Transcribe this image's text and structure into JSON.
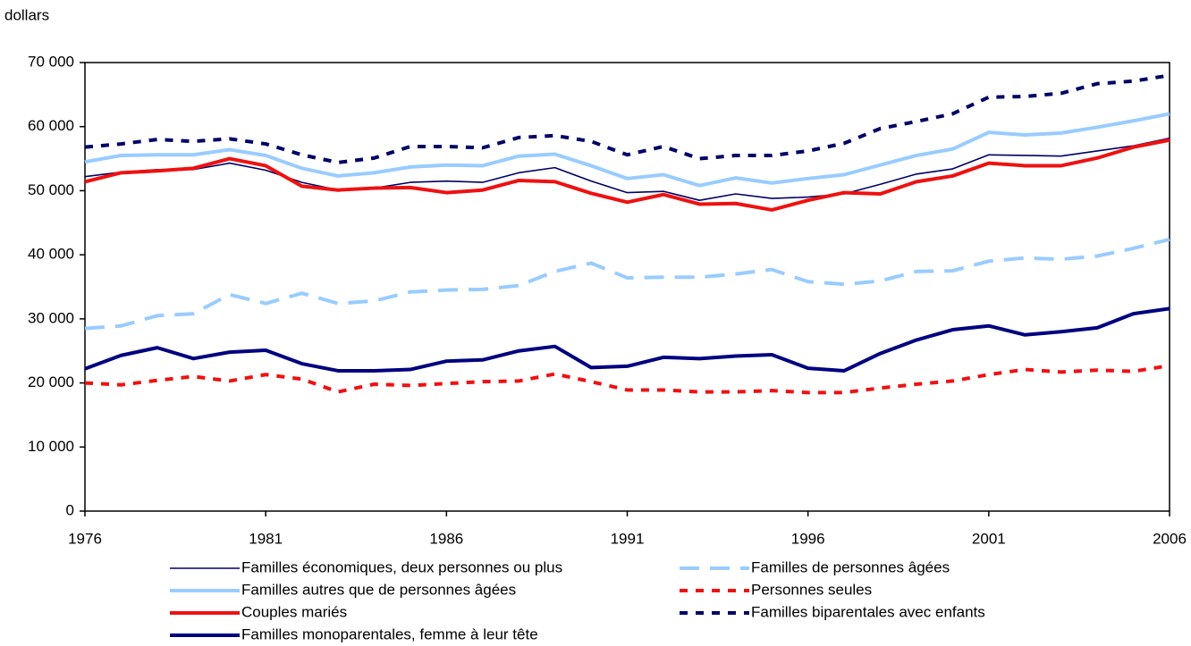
{
  "chart_data": {
    "type": "line",
    "y_label": "dollars",
    "x": [
      1976,
      1977,
      1978,
      1979,
      1980,
      1981,
      1982,
      1983,
      1984,
      1985,
      1986,
      1987,
      1988,
      1989,
      1990,
      1991,
      1992,
      1993,
      1994,
      1995,
      1996,
      1997,
      1998,
      1999,
      2000,
      2001,
      2002,
      2003,
      2004,
      2005,
      2006
    ],
    "xlim": [
      1976,
      2006
    ],
    "xticks": [
      1976,
      1981,
      1986,
      1991,
      1996,
      2001,
      2006
    ],
    "ylim": [
      0,
      70000
    ],
    "yticks": [
      0,
      {
        "value": 10000,
        "label": "10 000"
      },
      {
        "value": 20000,
        "label": "20 000"
      },
      {
        "value": 30000,
        "label": "30 000"
      },
      {
        "value": 40000,
        "label": "40 000"
      },
      {
        "value": 50000,
        "label": "50 000"
      },
      {
        "value": 60000,
        "label": "60 000"
      },
      {
        "value": 70000,
        "label": "70 000"
      }
    ],
    "series": [
      {
        "name": "Familles économiques, deux personnes ou plus",
        "color": "#000066",
        "dash": "solid",
        "values": [
          52200,
          52900,
          53300,
          53300,
          54300,
          53200,
          51300,
          50100,
          50400,
          51300,
          51500,
          51300,
          52800,
          53600,
          51500,
          49700,
          49900,
          48500,
          49500,
          48800,
          49000,
          49500,
          51000,
          52600,
          53400,
          55600,
          55500,
          55400,
          56200,
          57000,
          58200
        ]
      },
      {
        "name": "Familles autres que de personnes âgées",
        "color": "#99ccff",
        "dash": "solid",
        "values": [
          54500,
          55500,
          55600,
          55600,
          56400,
          55500,
          53500,
          52300,
          52800,
          53700,
          54000,
          53900,
          55400,
          55700,
          53900,
          51900,
          52500,
          50800,
          52000,
          51200,
          51900,
          52500,
          54000,
          55500,
          56500,
          59100,
          58700,
          59000,
          59900,
          60900,
          62000
        ]
      },
      {
        "name": "Couples mariés",
        "color": "#ee1111",
        "dash": "solid",
        "values": [
          51400,
          52800,
          53100,
          53500,
          55000,
          53900,
          50700,
          50100,
          50400,
          50500,
          49700,
          50100,
          51600,
          51400,
          49600,
          48200,
          49400,
          47900,
          48000,
          47000,
          48500,
          49700,
          49500,
          51400,
          52300,
          54300,
          53900,
          53900,
          55100,
          56800,
          57900
        ]
      },
      {
        "name": "Familles monoparentales, femme à leur tête",
        "color": "#000080",
        "dash": "solid",
        "values": [
          22200,
          24300,
          25500,
          23800,
          24800,
          25100,
          23000,
          21900,
          21900,
          22100,
          23400,
          23600,
          25000,
          25700,
          22400,
          22600,
          24000,
          23800,
          24200,
          24400,
          22300,
          21900,
          24600,
          26700,
          28300,
          28900,
          27500,
          28000,
          28600,
          30800,
          31600
        ]
      },
      {
        "name": "Familles de personnes âgées",
        "color": "#99ccff",
        "dash": "dashed",
        "values": [
          28500,
          28900,
          30500,
          30800,
          33800,
          32400,
          34000,
          32400,
          32800,
          34200,
          34500,
          34600,
          35200,
          37400,
          38700,
          36400,
          36500,
          36500,
          37000,
          37700,
          35800,
          35400,
          35900,
          37400,
          37500,
          39000,
          39500,
          39300,
          39800,
          41000,
          42400
        ]
      },
      {
        "name": "Personnes seules",
        "color": "#ee1111",
        "dash": "dotted",
        "values": [
          20000,
          19700,
          20400,
          21000,
          20300,
          21300,
          20600,
          18600,
          19800,
          19600,
          19900,
          20200,
          20300,
          21400,
          20200,
          18900,
          18900,
          18600,
          18600,
          18800,
          18500,
          18500,
          19200,
          19800,
          20300,
          21300,
          22100,
          21700,
          22000,
          21800,
          22700
        ]
      },
      {
        "name": "Familles biparentales avec enfants",
        "color": "#000066",
        "dash": "dotted",
        "values": [
          56800,
          57300,
          58000,
          57700,
          58100,
          57300,
          55600,
          54400,
          55100,
          56900,
          56900,
          56700,
          58300,
          58600,
          57700,
          55600,
          56900,
          55000,
          55500,
          55500,
          56200,
          57400,
          59700,
          60800,
          62000,
          64600,
          64700,
          65200,
          66700,
          67100,
          68000
        ]
      }
    ]
  }
}
